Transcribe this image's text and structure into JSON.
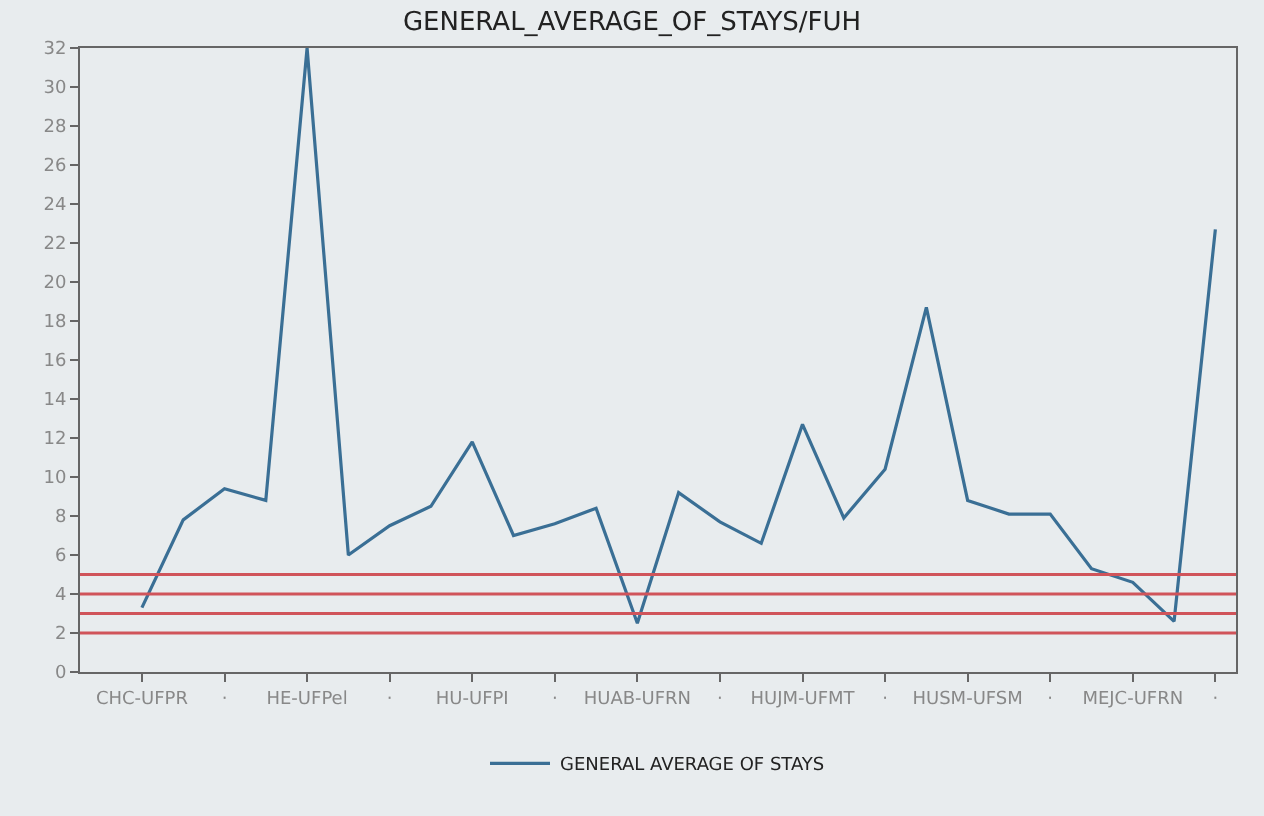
{
  "chart_data": {
    "type": "line",
    "title": "GENERAL_AVERAGE_OF_STAYS/FUH",
    "categories": [
      "CHC-UFPR",
      null,
      "·",
      null,
      "HE-UFPel",
      null,
      "·",
      null,
      "HU-UFPI",
      null,
      "·",
      null,
      "HUAB-UFRN",
      null,
      "·",
      null,
      "HUJM-UFMT",
      null,
      "·",
      null,
      "HUSM-UFSM",
      null,
      "·",
      null,
      "MEJC-UFRN",
      null,
      "·"
    ],
    "series": [
      {
        "name": "GENERAL AVERAGE OF STAYS",
        "color": "#3a6f95",
        "values": [
          3.3,
          7.8,
          9.4,
          8.8,
          32,
          6.0,
          7.5,
          8.5,
          11.8,
          7.0,
          7.6,
          8.4,
          2.5,
          9.2,
          7.7,
          6.6,
          12.7,
          7.9,
          10.4,
          18.7,
          8.8,
          8.1,
          8.1,
          5.3,
          4.6,
          2.6,
          22.7
        ]
      }
    ],
    "ylim": [
      0,
      32
    ],
    "yticks": [
      0,
      2,
      4,
      6,
      8,
      10,
      12,
      14,
      16,
      18,
      20,
      22,
      24,
      26,
      28,
      30,
      32
    ],
    "ref_lines": [
      {
        "axis": "y",
        "value": 2,
        "color": "#d0545a"
      },
      {
        "axis": "y",
        "value": 3,
        "color": "#d0545a"
      },
      {
        "axis": "y",
        "value": 4,
        "color": "#d0545a"
      },
      {
        "axis": "y",
        "value": 5,
        "color": "#d0545a"
      }
    ],
    "grid": false,
    "legend": "bottom",
    "marker": "none",
    "line_style": "solid"
  }
}
